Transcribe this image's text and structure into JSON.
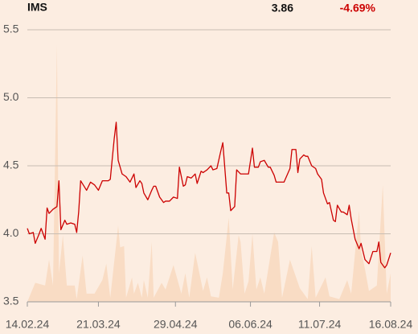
{
  "header": {
    "name": "IMS",
    "last_price": "3.86",
    "change": "-4.69%"
  },
  "chart_data": {
    "type": "line",
    "xlim": [
      "2024-02-14",
      "2024-08-16"
    ],
    "xticks": [
      {
        "value": "2024-02-14",
        "label": "14.02.24"
      },
      {
        "value": "2024-03-21",
        "label": "21.03.24"
      },
      {
        "value": "2024-04-29",
        "label": "29.04.24"
      },
      {
        "value": "2024-06-06",
        "label": "06.06.24"
      },
      {
        "value": "2024-07-11",
        "label": "11.07.24"
      },
      {
        "value": "2024-08-16",
        "label": "16.08.24"
      }
    ],
    "ylim": [
      3.5,
      5.5
    ],
    "yticks": [
      3.5,
      {
        "value": 4,
        "label": "4.0"
      },
      4.5,
      {
        "value": 5,
        "label": "5.0"
      },
      5.5
    ],
    "grid": true,
    "series": [
      {
        "kind": "area",
        "color": "#f9dcc4",
        "x": [
          "2024-02-14",
          "2024-02-18",
          "2024-02-23",
          "2024-02-25",
          "2024-02-27",
          "2024-02-29",
          "2024-03-01",
          "2024-03-03",
          "2024-03-05",
          "2024-03-09",
          "2024-03-10",
          "2024-03-13",
          "2024-03-15",
          "2024-03-19",
          "2024-03-23",
          "2024-03-25",
          "2024-03-27",
          "2024-03-31",
          "2024-04-01",
          "2024-04-03",
          "2024-04-04",
          "2024-04-07",
          "2024-04-08",
          "2024-04-10",
          "2024-04-12",
          "2024-04-13",
          "2024-04-15",
          "2024-04-17",
          "2024-04-18",
          "2024-04-22",
          "2024-04-24",
          "2024-04-28",
          "2024-05-02",
          "2024-05-04",
          "2024-05-06",
          "2024-05-09",
          "2024-05-13",
          "2024-05-15",
          "2024-05-17",
          "2024-05-21",
          "2024-05-23",
          "2024-05-26",
          "2024-05-28",
          "2024-05-31",
          "2024-06-01",
          "2024-06-03",
          "2024-06-05",
          "2024-06-07",
          "2024-06-09",
          "2024-06-11",
          "2024-06-13",
          "2024-06-18",
          "2024-06-20",
          "2024-06-22",
          "2024-06-26",
          "2024-07-01",
          "2024-07-05",
          "2024-07-07",
          "2024-07-09",
          "2024-07-14",
          "2024-07-16",
          "2024-07-21",
          "2024-07-25",
          "2024-07-27",
          "2024-07-31",
          "2024-08-01",
          "2024-08-03",
          "2024-08-05",
          "2024-08-09",
          "2024-08-12",
          "2024-08-14",
          "2024-08-16"
        ],
        "values": [
          3.5,
          3.64,
          3.62,
          3.81,
          3.62,
          5.39,
          3.71,
          3.99,
          3.62,
          3.62,
          3.52,
          3.84,
          3.56,
          3.56,
          3.66,
          3.78,
          3.53,
          4.06,
          3.9,
          3.91,
          3.53,
          3.68,
          3.56,
          3.64,
          3.53,
          3.66,
          3.53,
          3.94,
          3.53,
          3.64,
          3.59,
          3.77,
          3.56,
          3.71,
          3.53,
          3.86,
          3.58,
          3.68,
          3.54,
          3.53,
          3.71,
          4.12,
          3.59,
          3.99,
          3.94,
          3.56,
          3.65,
          4.0,
          3.59,
          3.68,
          3.56,
          4.01,
          3.94,
          3.53,
          3.81,
          3.6,
          3.52,
          3.91,
          3.53,
          3.68,
          3.54,
          3.52,
          3.66,
          3.56,
          4.17,
          3.88,
          3.74,
          3.58,
          3.62,
          4.36,
          3.56,
          3.71
        ]
      },
      {
        "kind": "line",
        "color": "#cc0000",
        "x": [
          "2024-02-14",
          "2024-02-15",
          "2024-02-17",
          "2024-02-18",
          "2024-02-20",
          "2024-02-21",
          "2024-02-23",
          "2024-02-24",
          "2024-02-25",
          "2024-02-27",
          "2024-02-29",
          "2024-03-01",
          "2024-03-02",
          "2024-03-04",
          "2024-03-05",
          "2024-03-07",
          "2024-03-09",
          "2024-03-10",
          "2024-03-11",
          "2024-03-12",
          "2024-03-15",
          "2024-03-17",
          "2024-03-19",
          "2024-03-21",
          "2024-03-23",
          "2024-03-26",
          "2024-03-27",
          "2024-03-29",
          "2024-03-30",
          "2024-03-31",
          "2024-04-02",
          "2024-04-04",
          "2024-04-06",
          "2024-04-08",
          "2024-04-09",
          "2024-04-11",
          "2024-04-12",
          "2024-04-13",
          "2024-04-15",
          "2024-04-17",
          "2024-04-18",
          "2024-04-19",
          "2024-04-21",
          "2024-04-23",
          "2024-04-24",
          "2024-04-26",
          "2024-04-28",
          "2024-04-30",
          "2024-05-01",
          "2024-05-03",
          "2024-05-04",
          "2024-05-05",
          "2024-05-07",
          "2024-05-09",
          "2024-05-10",
          "2024-05-12",
          "2024-05-13",
          "2024-05-15",
          "2024-05-17",
          "2024-05-18",
          "2024-05-20",
          "2024-05-22",
          "2024-05-23",
          "2024-05-25",
          "2024-05-26",
          "2024-05-27",
          "2024-05-29",
          "2024-05-30",
          "2024-06-01",
          "2024-06-02",
          "2024-06-04",
          "2024-06-05",
          "2024-06-07",
          "2024-06-08",
          "2024-06-10",
          "2024-06-11",
          "2024-06-13",
          "2024-06-15",
          "2024-06-16",
          "2024-06-18",
          "2024-06-19",
          "2024-06-21",
          "2024-06-23",
          "2024-06-26",
          "2024-06-27",
          "2024-06-29",
          "2024-06-30",
          "2024-07-01",
          "2024-07-03",
          "2024-07-04",
          "2024-07-05",
          "2024-07-07",
          "2024-07-09",
          "2024-07-10",
          "2024-07-12",
          "2024-07-13",
          "2024-07-15",
          "2024-07-16",
          "2024-07-18",
          "2024-07-19",
          "2024-07-20",
          "2024-07-22",
          "2024-07-23",
          "2024-07-25",
          "2024-07-26",
          "2024-07-27",
          "2024-07-29",
          "2024-07-31",
          "2024-08-01",
          "2024-08-03",
          "2024-08-05",
          "2024-08-07",
          "2024-08-09",
          "2024-08-10",
          "2024-08-11",
          "2024-08-13",
          "2024-08-14",
          "2024-08-16"
        ],
        "values": [
          4.04,
          4.0,
          4.01,
          3.93,
          4.0,
          4.04,
          3.96,
          4.19,
          4.15,
          4.18,
          4.2,
          4.39,
          4.03,
          4.1,
          4.07,
          4.08,
          4.07,
          4.01,
          4.16,
          4.39,
          4.32,
          4.38,
          4.36,
          4.32,
          4.39,
          4.39,
          4.4,
          4.7,
          4.82,
          4.54,
          4.44,
          4.42,
          4.38,
          4.44,
          4.34,
          4.39,
          4.37,
          4.3,
          4.25,
          4.32,
          4.35,
          4.35,
          4.27,
          4.23,
          4.24,
          4.24,
          4.27,
          4.26,
          4.49,
          4.35,
          4.36,
          4.42,
          4.41,
          4.44,
          4.37,
          4.46,
          4.45,
          4.47,
          4.5,
          4.47,
          4.48,
          4.61,
          4.67,
          4.3,
          4.3,
          4.17,
          4.2,
          4.47,
          4.44,
          4.44,
          4.44,
          4.44,
          4.63,
          4.49,
          4.49,
          4.53,
          4.54,
          4.49,
          4.49,
          4.43,
          4.38,
          4.38,
          4.38,
          4.48,
          4.62,
          4.62,
          4.45,
          4.55,
          4.58,
          4.57,
          4.57,
          4.5,
          4.48,
          4.44,
          4.4,
          4.3,
          4.22,
          4.23,
          4.1,
          4.09,
          4.21,
          4.16,
          4.16,
          4.14,
          4.21,
          4.11,
          3.96,
          3.89,
          3.93,
          3.81,
          3.78,
          3.87,
          3.87,
          3.94,
          3.79,
          3.75,
          3.77,
          3.86
        ]
      }
    ]
  }
}
